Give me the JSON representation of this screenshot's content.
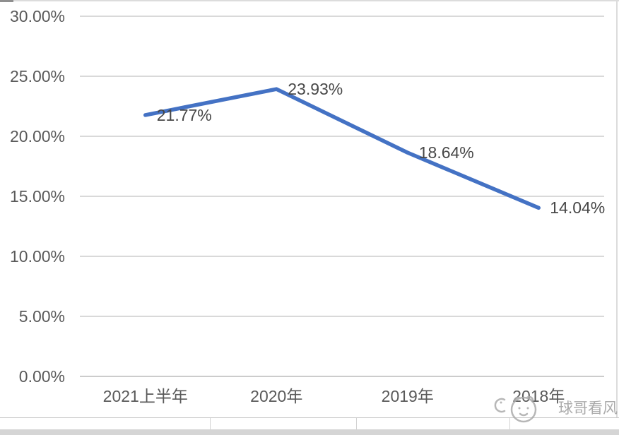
{
  "chart_data": {
    "type": "line",
    "categories": [
      "2021上半年",
      "2020年",
      "2019年",
      "2018年"
    ],
    "values": [
      21.77,
      23.93,
      18.64,
      14.04
    ],
    "data_labels": [
      "21.77%",
      "23.93%",
      "18.64%",
      "14.04%"
    ],
    "y_ticks": [
      {
        "value": 0,
        "label": "0.00%"
      },
      {
        "value": 5,
        "label": "5.00%"
      },
      {
        "value": 10,
        "label": "10.00%"
      },
      {
        "value": 15,
        "label": "15.00%"
      },
      {
        "value": 20,
        "label": "20.00%"
      },
      {
        "value": 25,
        "label": "25.00%"
      },
      {
        "value": 30,
        "label": "30.00%"
      }
    ],
    "ylim": [
      0,
      30
    ],
    "grid": true,
    "legend": "none",
    "title": "",
    "xlabel": "",
    "ylabel": "",
    "line_color": "#4472C4"
  },
  "colors": {
    "axis_text": "#5a5a5a",
    "data_label_text": "#474747",
    "gridline": "#d9d9d9",
    "zero_line": "#cccccc",
    "watermark": "#9d9d9d"
  },
  "watermark": {
    "text": "球哥看风"
  }
}
